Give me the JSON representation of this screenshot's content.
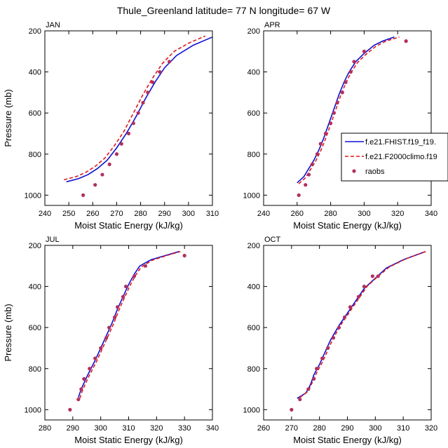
{
  "title": "Thule_Greenland  latitude= 77 N longitude= 67 W",
  "colors": {
    "fhist": "#1010d0",
    "f2000": "#e01818",
    "raobs": "#b03060"
  },
  "legend": {
    "location": "right side of APR panel",
    "entries": [
      {
        "label": "f.e21.FHIST.f19_f19.",
        "style": "solid",
        "color_key": "fhist"
      },
      {
        "label": "f.e21.F2000climo.f19",
        "style": "dashed",
        "color_key": "f2000"
      },
      {
        "label": "raobs",
        "style": "markers",
        "color_key": "raobs"
      }
    ]
  },
  "chart_data": [
    {
      "type": "line",
      "panel_label": "JAN",
      "xlabel": "Moist Static Energy (kJ/kg)",
      "ylabel": "Pressure (mb)",
      "xlim": [
        240,
        310
      ],
      "ylim": [
        1050,
        200
      ],
      "xticks": [
        240,
        250,
        260,
        270,
        280,
        290,
        300,
        310
      ],
      "yticks": [
        200,
        400,
        600,
        800,
        1000
      ],
      "series": [
        {
          "key": "fhist",
          "style": "solid",
          "x": [
            249,
            254,
            258,
            262,
            266,
            270,
            274,
            278,
            282,
            286,
            290,
            295,
            302,
            310
          ],
          "y": [
            935,
            920,
            900,
            870,
            830,
            770,
            700,
            620,
            530,
            450,
            380,
            320,
            270,
            230
          ]
        },
        {
          "key": "f2000",
          "style": "dashed",
          "x": [
            248,
            253,
            257,
            261,
            265,
            269,
            273,
            277,
            281,
            285,
            289,
            294,
            300,
            307
          ],
          "y": [
            925,
            910,
            890,
            860,
            820,
            760,
            690,
            600,
            510,
            430,
            360,
            300,
            260,
            225
          ]
        },
        {
          "key": "raobs",
          "style": "markers",
          "x": [
            256,
            261,
            264,
            267,
            270,
            272,
            275,
            277,
            279,
            281,
            283,
            285,
            288,
            292
          ],
          "y": [
            1000,
            950,
            900,
            850,
            800,
            750,
            700,
            650,
            600,
            550,
            500,
            450,
            400,
            350
          ]
        }
      ]
    },
    {
      "type": "line",
      "panel_label": "APR",
      "xlabel": "Moist Static Energy (kJ/kg)",
      "ylabel": "",
      "xlim": [
        240,
        340
      ],
      "ylim": [
        1050,
        200
      ],
      "xticks": [
        240,
        260,
        280,
        300,
        320,
        340
      ],
      "yticks": [
        200,
        400,
        600,
        800,
        1000
      ],
      "series": [
        {
          "key": "fhist",
          "style": "solid",
          "x": [
            260,
            264,
            267,
            270,
            273,
            276,
            279,
            282,
            285,
            288,
            291,
            295,
            300,
            306,
            311,
            318
          ],
          "y": [
            940,
            910,
            870,
            830,
            780,
            720,
            650,
            580,
            510,
            450,
            400,
            350,
            310,
            270,
            250,
            230
          ]
        },
        {
          "key": "f2000",
          "style": "dashed",
          "x": [
            261,
            265,
            268,
            271,
            274,
            277,
            280,
            283,
            286,
            289,
            292,
            296,
            301,
            307,
            313,
            321
          ],
          "y": [
            945,
            915,
            875,
            835,
            785,
            725,
            655,
            585,
            515,
            455,
            405,
            355,
            315,
            275,
            250,
            230
          ]
        },
        {
          "key": "raobs",
          "style": "markers",
          "x": [
            261,
            265,
            267,
            269,
            272,
            274,
            277,
            280,
            282,
            284,
            287,
            289,
            292,
            294,
            300,
            325
          ],
          "y": [
            1000,
            950,
            900,
            850,
            800,
            750,
            700,
            650,
            600,
            550,
            500,
            450,
            400,
            350,
            300,
            250
          ]
        }
      ]
    },
    {
      "type": "line",
      "panel_label": "JUL",
      "xlabel": "Moist Static Energy (kJ/kg)",
      "ylabel": "Pressure (mb)",
      "xlim": [
        280,
        340
      ],
      "ylim": [
        1050,
        200
      ],
      "xticks": [
        280,
        290,
        300,
        310,
        320,
        330,
        340
      ],
      "yticks": [
        200,
        400,
        600,
        800,
        1000
      ],
      "series": [
        {
          "key": "fhist",
          "style": "solid",
          "x": [
            292,
            293,
            295,
            298,
            300,
            302,
            304,
            306,
            308,
            310,
            312,
            314,
            318,
            323,
            328
          ],
          "y": [
            940,
            900,
            840,
            760,
            700,
            640,
            580,
            510,
            450,
            390,
            340,
            300,
            270,
            250,
            230
          ]
        },
        {
          "key": "f2000",
          "style": "dashed",
          "x": [
            292.5,
            293.5,
            295.5,
            298.5,
            300.5,
            302.5,
            304.5,
            306.5,
            308.5,
            310.5,
            312.5,
            314.5,
            318.5,
            323.5,
            328.5
          ],
          "y": [
            945,
            905,
            845,
            765,
            705,
            645,
            585,
            515,
            455,
            395,
            345,
            305,
            272,
            250,
            230
          ]
        },
        {
          "key": "raobs",
          "style": "markers",
          "x": [
            289,
            292,
            293,
            294,
            296,
            298,
            300,
            302,
            303,
            305,
            306,
            308,
            309,
            312,
            316,
            330
          ],
          "y": [
            1000,
            950,
            900,
            850,
            800,
            750,
            700,
            650,
            600,
            550,
            500,
            450,
            400,
            350,
            300,
            250
          ]
        }
      ]
    },
    {
      "type": "line",
      "panel_label": "OCT",
      "xlabel": "Moist Static Energy (kJ/kg)",
      "ylabel": "",
      "xlim": [
        260,
        320
      ],
      "ylim": [
        1050,
        200
      ],
      "xticks": [
        260,
        270,
        280,
        290,
        300,
        310,
        320
      ],
      "yticks": [
        200,
        400,
        600,
        800,
        1000
      ],
      "series": [
        {
          "key": "fhist",
          "style": "solid",
          "x": [
            272,
            275,
            276,
            277,
            278,
            280,
            282,
            284,
            287,
            290,
            293,
            296,
            300,
            304,
            310,
            318
          ],
          "y": [
            945,
            920,
            900,
            870,
            830,
            780,
            720,
            660,
            590,
            530,
            470,
            410,
            360,
            310,
            270,
            230
          ]
        },
        {
          "key": "f2000",
          "style": "dashed",
          "x": [
            273,
            275.5,
            276.5,
            277.5,
            279,
            281,
            283,
            285,
            288,
            291,
            294,
            297,
            301,
            305,
            311,
            318.5
          ],
          "y": [
            940,
            915,
            895,
            865,
            820,
            770,
            710,
            650,
            580,
            520,
            460,
            400,
            350,
            305,
            265,
            228
          ]
        },
        {
          "key": "raobs",
          "style": "markers",
          "x": [
            270,
            273,
            276,
            278,
            279,
            281,
            283,
            285,
            287,
            289,
            291,
            294,
            296,
            299,
            301
          ],
          "y": [
            1000,
            950,
            900,
            850,
            800,
            750,
            700,
            650,
            600,
            550,
            500,
            450,
            400,
            350,
            350
          ]
        }
      ]
    }
  ]
}
